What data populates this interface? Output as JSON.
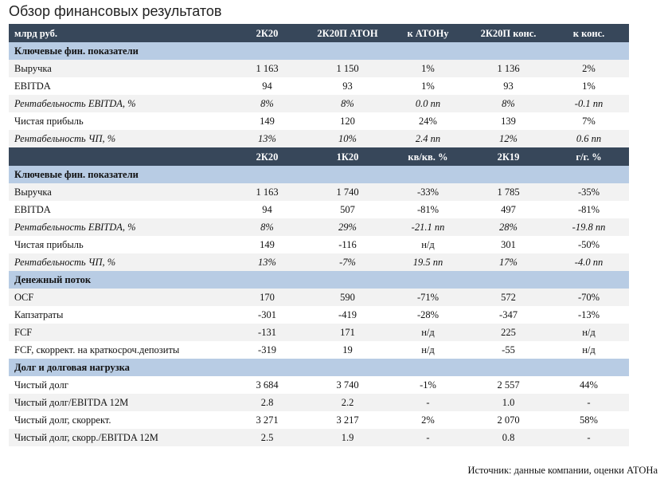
{
  "title": "Обзор финансовых результатов",
  "colors": {
    "header_bg": "#37475a",
    "section_bg": "#b8cce4",
    "stripe_bg": "#f2f2f2"
  },
  "rows": [
    {
      "type": "header",
      "cells": [
        "млрд руб.",
        "2К20",
        "2К20П АТОН",
        "к АТОНу",
        "2К20П конс.",
        "к конс."
      ]
    },
    {
      "type": "section",
      "cells": [
        "Ключевые фин. показатели"
      ]
    },
    {
      "type": "row",
      "cells": [
        "Выручка",
        "1 163",
        "1 150",
        "1%",
        "1 136",
        "2%"
      ]
    },
    {
      "type": "row",
      "cells": [
        "EBITDA",
        "94",
        "93",
        "1%",
        "93",
        "1%"
      ]
    },
    {
      "type": "italic",
      "cells": [
        "Рентабельность EBITDA, %",
        "8%",
        "8%",
        "0.0 пп",
        "8%",
        "-0.1 пп"
      ]
    },
    {
      "type": "row",
      "cells": [
        "Чистая прибыль",
        "149",
        "120",
        "24%",
        "139",
        "7%"
      ]
    },
    {
      "type": "italic",
      "cells": [
        "Рентабельность ЧП, %",
        "13%",
        "10%",
        "2.4 пп",
        "12%",
        "0.6 пп"
      ]
    },
    {
      "type": "header",
      "cells": [
        "",
        "2К20",
        "1К20",
        "кв/кв. %",
        "2К19",
        "г/г. %"
      ]
    },
    {
      "type": "section",
      "cells": [
        "Ключевые фин. показатели"
      ]
    },
    {
      "type": "row",
      "cells": [
        "Выручка",
        "1 163",
        "1 740",
        "-33%",
        "1 785",
        "-35%"
      ]
    },
    {
      "type": "row",
      "cells": [
        "EBITDA",
        "94",
        "507",
        "-81%",
        "497",
        "-81%"
      ]
    },
    {
      "type": "italic",
      "cells": [
        "Рентабельность EBITDA, %",
        "8%",
        "29%",
        "-21.1 пп",
        "28%",
        "-19.8 пп"
      ]
    },
    {
      "type": "row",
      "cells": [
        "Чистая прибыль",
        "149",
        "-116",
        "н/д",
        "301",
        "-50%"
      ]
    },
    {
      "type": "italic",
      "cells": [
        "Рентабельность ЧП, %",
        "13%",
        "-7%",
        "19.5 пп",
        "17%",
        "-4.0 пп"
      ]
    },
    {
      "type": "section",
      "cells": [
        "Денежный поток"
      ]
    },
    {
      "type": "row",
      "cells": [
        "OCF",
        "170",
        "590",
        "-71%",
        "572",
        "-70%"
      ]
    },
    {
      "type": "row",
      "cells": [
        "Капзатраты",
        "-301",
        "-419",
        "-28%",
        "-347",
        "-13%"
      ]
    },
    {
      "type": "row",
      "cells": [
        "FCF",
        "-131",
        "171",
        "н/д",
        "225",
        "н/д"
      ]
    },
    {
      "type": "row",
      "cells": [
        "FCF, скоррект. на краткосроч.депозиты",
        "-319",
        "19",
        "н/д",
        "-55",
        "н/д"
      ]
    },
    {
      "type": "section",
      "cells": [
        "Долг и долговая нагрузка"
      ]
    },
    {
      "type": "row",
      "cells": [
        "Чистый долг",
        "3 684",
        "3 740",
        "-1%",
        "2 557",
        "44%"
      ]
    },
    {
      "type": "row",
      "cells": [
        "Чистый долг/EBITDA 12M",
        "2.8",
        "2.2",
        "-",
        "1.0",
        "-"
      ]
    },
    {
      "type": "row",
      "cells": [
        "Чистый долг, скоррект.",
        "3 271",
        "3 217",
        "2%",
        "2 070",
        "58%"
      ]
    },
    {
      "type": "row",
      "cells": [
        "Чистый долг, скорр./EBITDA 12M",
        "2.5",
        "1.9",
        "-",
        "0.8",
        "-"
      ]
    }
  ],
  "source": "Источник: данные компании, оценки АТОНа"
}
